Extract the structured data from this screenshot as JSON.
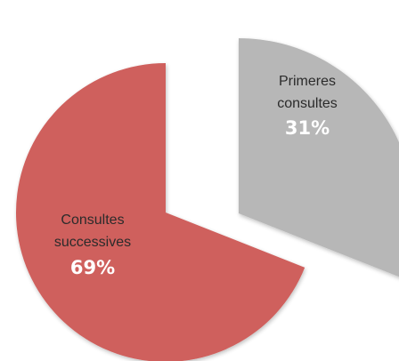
{
  "chart_data": {
    "type": "pie",
    "exploded": true,
    "slices": [
      {
        "label_lines": [
          "Primeres",
          "consultes"
        ],
        "percent_label": "31%",
        "value": 31,
        "color": "#b7b7b7"
      },
      {
        "label_lines": [
          "Consultes",
          "successives"
        ],
        "percent_label": "69%",
        "value": 69,
        "color": "#cf605d"
      }
    ]
  }
}
